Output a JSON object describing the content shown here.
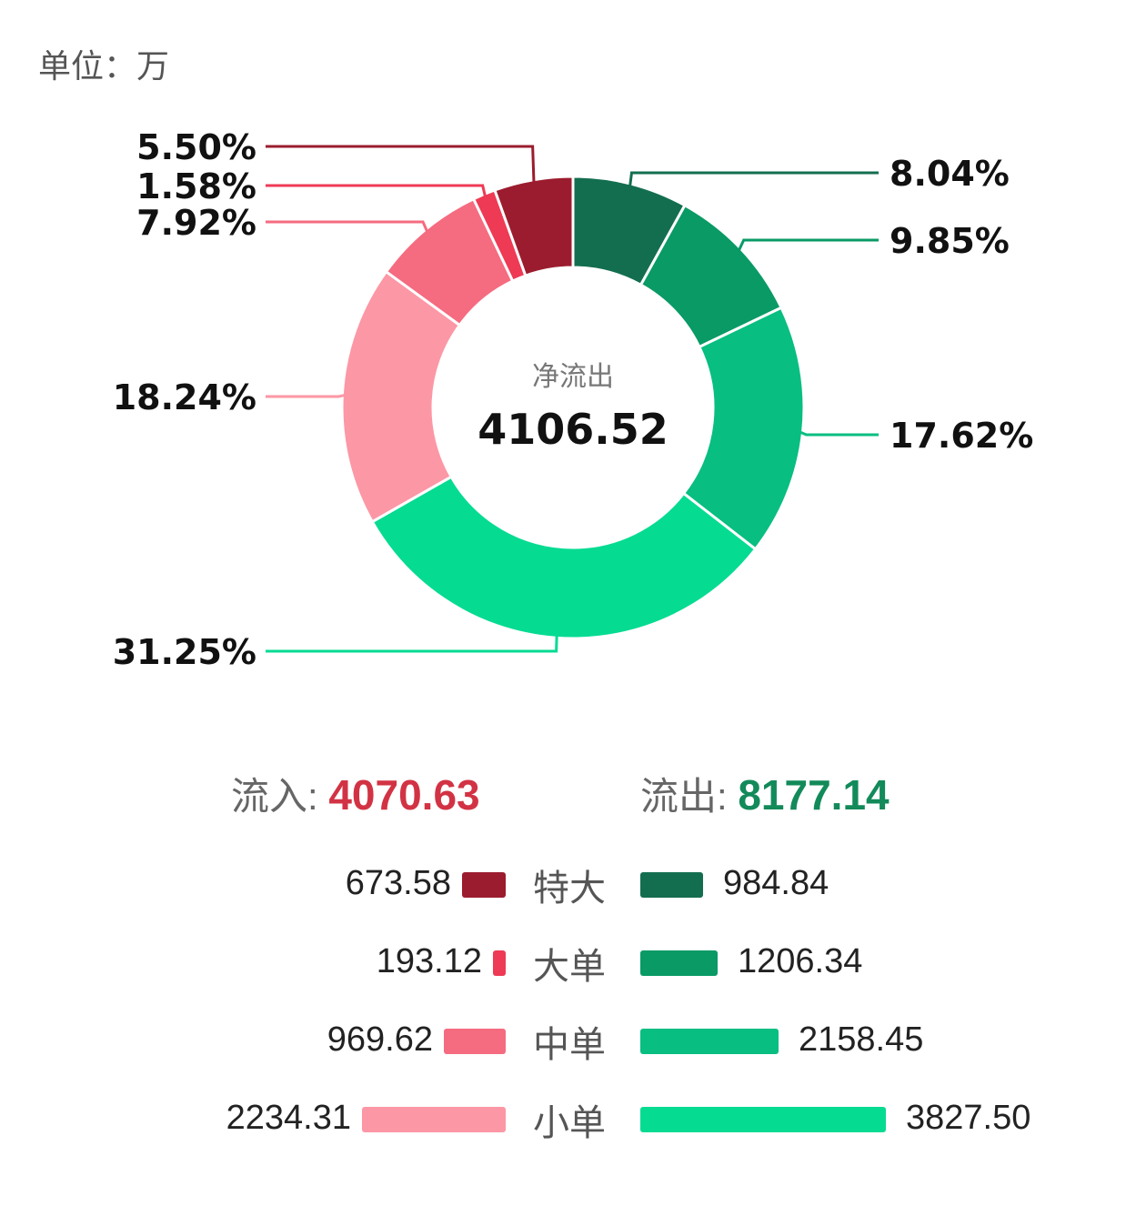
{
  "unit_label": "单位：万",
  "center": {
    "title": "净流出",
    "value": "4106.52"
  },
  "totals": {
    "inflow_label": "流入:",
    "inflow_value": "4070.63",
    "outflow_label": "流出:",
    "outflow_value": "8177.14"
  },
  "colors": {
    "in": [
      "#9b1c2e",
      "#ee3a55",
      "#f56b80",
      "#fc97a5"
    ],
    "out": [
      "#136e50",
      "#099a66",
      "#08be81",
      "#06db92"
    ],
    "inflow_text": "#d23344",
    "outflow_text": "#128a5a"
  },
  "chart_data": {
    "type": "pie",
    "donut": true,
    "slices": [
      {
        "label": "8.04%",
        "percent": 8.04,
        "value": 984.84,
        "flow": "out",
        "category": "特大"
      },
      {
        "label": "9.85%",
        "percent": 9.85,
        "value": 1206.34,
        "flow": "out",
        "category": "大单"
      },
      {
        "label": "17.62%",
        "percent": 17.62,
        "value": 2158.45,
        "flow": "out",
        "category": "中单"
      },
      {
        "label": "31.25%",
        "percent": 31.25,
        "value": 3827.5,
        "flow": "out",
        "category": "小单"
      },
      {
        "label": "18.24%",
        "percent": 18.24,
        "value": 2234.31,
        "flow": "in",
        "category": "小单"
      },
      {
        "label": "7.92%",
        "percent": 7.92,
        "value": 969.62,
        "flow": "in",
        "category": "中单"
      },
      {
        "label": "1.58%",
        "percent": 1.58,
        "value": 193.12,
        "flow": "in",
        "category": "大单"
      },
      {
        "label": "5.50%",
        "percent": 5.5,
        "value": 673.58,
        "flow": "in",
        "category": "特大"
      }
    ]
  },
  "breakdown": [
    {
      "category": "特大",
      "inflow": "673.58",
      "outflow": "984.84",
      "inflow_num": 673.58,
      "outflow_num": 984.84
    },
    {
      "category": "大单",
      "inflow": "193.12",
      "outflow": "1206.34",
      "inflow_num": 193.12,
      "outflow_num": 1206.34
    },
    {
      "category": "中单",
      "inflow": "969.62",
      "outflow": "2158.45",
      "inflow_num": 969.62,
      "outflow_num": 2158.45
    },
    {
      "category": "小单",
      "inflow": "2234.31",
      "outflow": "3827.50",
      "inflow_num": 2234.31,
      "outflow_num": 3827.5
    }
  ]
}
